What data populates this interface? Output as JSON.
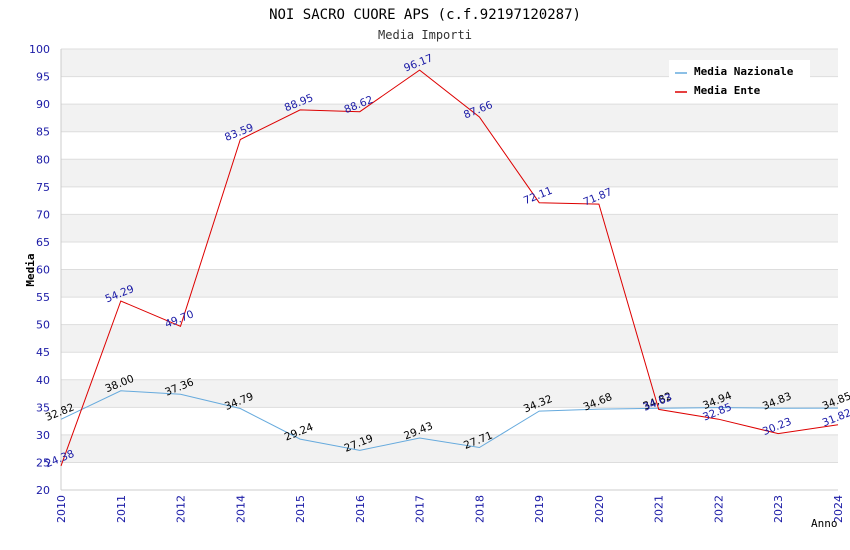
{
  "chart_data": {
    "type": "line",
    "title": "NOI SACRO CUORE APS (c.f.92197120287)",
    "subtitle": "Media Importi",
    "xlabel": "Anno",
    "ylabel": "Media",
    "ylim": [
      20,
      100
    ],
    "ytick_step": 5,
    "grid": true,
    "legend_position": "top-right",
    "categories": [
      "2010",
      "2011",
      "2012",
      "2014",
      "2015",
      "2016",
      "2017",
      "2018",
      "2019",
      "2020",
      "2021",
      "2022",
      "2023",
      "2024"
    ],
    "series": [
      {
        "name": "Media Nazionale",
        "color": "#66aadd",
        "label_color": "#000000",
        "values": [
          32.82,
          38.0,
          37.36,
          34.79,
          29.24,
          27.19,
          29.43,
          27.71,
          34.32,
          34.68,
          34.82,
          34.94,
          34.83,
          34.85
        ]
      },
      {
        "name": "Media Ente",
        "color": "#dd0000",
        "label_color": "#1a1aa6",
        "values": [
          24.38,
          54.29,
          49.7,
          83.59,
          88.95,
          88.62,
          96.17,
          87.66,
          72.11,
          71.87,
          34.63,
          32.85,
          30.23,
          31.82
        ]
      }
    ]
  }
}
